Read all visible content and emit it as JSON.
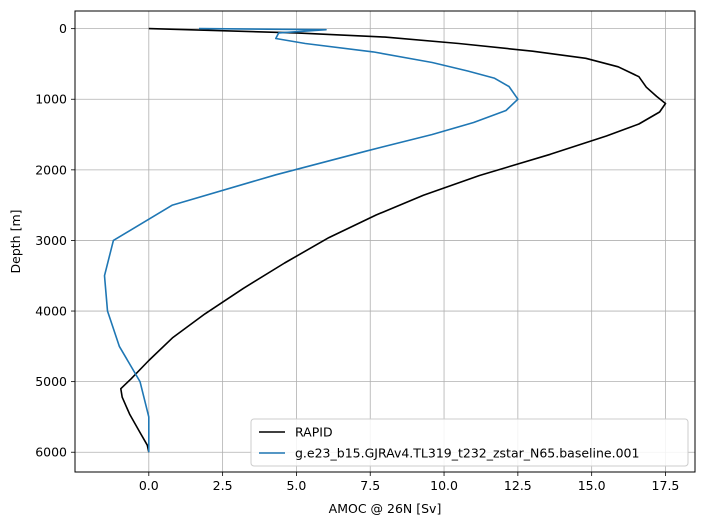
{
  "chart_data": {
    "type": "line",
    "title": "",
    "xlabel": "AMOC @ 26N [Sv]",
    "ylabel": "Depth [m]",
    "xlim": [
      -2.5,
      18.5
    ],
    "ylim": [
      6280,
      -250
    ],
    "y_inverted": true,
    "grid": true,
    "legend_position": "lower right",
    "x_ticks": [
      "0.0",
      "2.5",
      "5.0",
      "7.5",
      "10.0",
      "12.5",
      "15.0",
      "17.5"
    ],
    "x_tick_values": [
      0,
      2.5,
      5,
      7.5,
      10,
      12.5,
      15,
      17.5
    ],
    "y_ticks": [
      "0",
      "1000",
      "2000",
      "3000",
      "4000",
      "5000",
      "6000"
    ],
    "y_tick_values": [
      0,
      1000,
      2000,
      3000,
      4000,
      5000,
      6000
    ],
    "series": [
      {
        "name": "RAPID",
        "color": "#000000",
        "points": [
          [
            0.0,
            0
          ],
          [
            5.0,
            60
          ],
          [
            8.0,
            120
          ],
          [
            10.5,
            210
          ],
          [
            13.0,
            320
          ],
          [
            14.8,
            420
          ],
          [
            15.9,
            540
          ],
          [
            16.6,
            680
          ],
          [
            16.85,
            830
          ],
          [
            17.2,
            960
          ],
          [
            17.5,
            1060
          ],
          [
            17.3,
            1180
          ],
          [
            16.6,
            1350
          ],
          [
            15.5,
            1520
          ],
          [
            13.6,
            1780
          ],
          [
            11.2,
            2080
          ],
          [
            9.3,
            2360
          ],
          [
            7.7,
            2640
          ],
          [
            6.1,
            2960
          ],
          [
            4.6,
            3320
          ],
          [
            3.2,
            3680
          ],
          [
            1.9,
            4040
          ],
          [
            0.8,
            4380
          ],
          [
            0.0,
            4700
          ],
          [
            -0.6,
            4960
          ],
          [
            -0.95,
            5100
          ],
          [
            -0.9,
            5220
          ],
          [
            -0.65,
            5460
          ],
          [
            -0.3,
            5720
          ],
          [
            -0.05,
            5900
          ],
          [
            0.0,
            6000
          ]
        ]
      },
      {
        "name": "g.e23_b15.GJRAv4.TL319_t232_zstar_N65.baseline.001",
        "color": "#1f77b4",
        "points": [
          [
            1.7,
            0
          ],
          [
            6.0,
            15
          ],
          [
            4.4,
            60
          ],
          [
            4.3,
            140
          ],
          [
            5.3,
            210
          ],
          [
            7.6,
            330
          ],
          [
            9.6,
            480
          ],
          [
            10.8,
            600
          ],
          [
            11.7,
            700
          ],
          [
            12.2,
            820
          ],
          [
            12.5,
            1000
          ],
          [
            12.1,
            1160
          ],
          [
            11.0,
            1330
          ],
          [
            9.6,
            1500
          ],
          [
            7.4,
            1730
          ],
          [
            4.3,
            2070
          ],
          [
            0.8,
            2500
          ],
          [
            -1.2,
            3000
          ],
          [
            -1.5,
            3500
          ],
          [
            -1.4,
            4000
          ],
          [
            -1.0,
            4500
          ],
          [
            -0.3,
            5000
          ],
          [
            0.0,
            5500
          ],
          [
            0.0,
            6000
          ]
        ]
      }
    ]
  }
}
